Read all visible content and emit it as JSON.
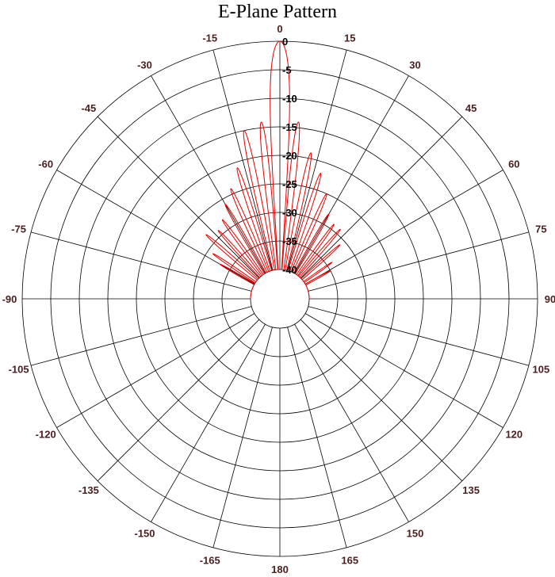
{
  "chart_data": {
    "type": "polar",
    "title": "E-Plane Pattern",
    "radial_ticks": [
      "0",
      "-5",
      "-10",
      "-15",
      "-20",
      "-25",
      "-30",
      "-35",
      "-40"
    ],
    "angle_ticks": [
      "0",
      "15",
      "30",
      "45",
      "60",
      "75",
      "90",
      "105",
      "120",
      "135",
      "150",
      "165",
      "180",
      "-165",
      "-150",
      "-135",
      "-120",
      "-105",
      "-90",
      "-75",
      "-60",
      "-45",
      "-30",
      "-15"
    ],
    "rlim": [
      -40,
      0
    ],
    "angle_step_deg": 15,
    "grid": true,
    "series": [
      {
        "color": "#e00000",
        "lobes": [
          {
            "angle": 0,
            "peak_db": 0,
            "half_width_deg": 3.5
          },
          {
            "angle": 6,
            "peak_db": -14,
            "half_width_deg": 1.8
          },
          {
            "angle": -6,
            "peak_db": -14,
            "half_width_deg": 1.8
          },
          {
            "angle": 12,
            "peak_db": -19,
            "half_width_deg": 1.8
          },
          {
            "angle": -12,
            "peak_db": -15,
            "half_width_deg": 1.8
          },
          {
            "angle": 18,
            "peak_db": -22,
            "half_width_deg": 1.8
          },
          {
            "angle": -18,
            "peak_db": -21,
            "half_width_deg": 1.8
          },
          {
            "angle": 24,
            "peak_db": -25,
            "half_width_deg": 1.8
          },
          {
            "angle": -24,
            "peak_db": -24,
            "half_width_deg": 1.8
          },
          {
            "angle": 30,
            "peak_db": -28,
            "half_width_deg": 1.8
          },
          {
            "angle": -30,
            "peak_db": -26,
            "half_width_deg": 1.8
          },
          {
            "angle": 36,
            "peak_db": -29,
            "half_width_deg": 1.8
          },
          {
            "angle": -36,
            "peak_db": -28,
            "half_width_deg": 1.8
          },
          {
            "angle": 41,
            "peak_db": -29,
            "half_width_deg": 1.8
          },
          {
            "angle": -42,
            "peak_db": -29,
            "half_width_deg": 1.8
          },
          {
            "angle": 48,
            "peak_db": -31,
            "half_width_deg": 1.8
          },
          {
            "angle": -49,
            "peak_db": -28,
            "half_width_deg": 1.8
          },
          {
            "angle": 55,
            "peak_db": -34,
            "half_width_deg": 1.8
          },
          {
            "angle": -56,
            "peak_db": -31,
            "half_width_deg": 1.8
          },
          {
            "angle": 61,
            "peak_db": -35,
            "half_width_deg": 1.8
          },
          {
            "angle": -60,
            "peak_db": -33,
            "half_width_deg": 1.8
          }
        ]
      }
    ]
  }
}
